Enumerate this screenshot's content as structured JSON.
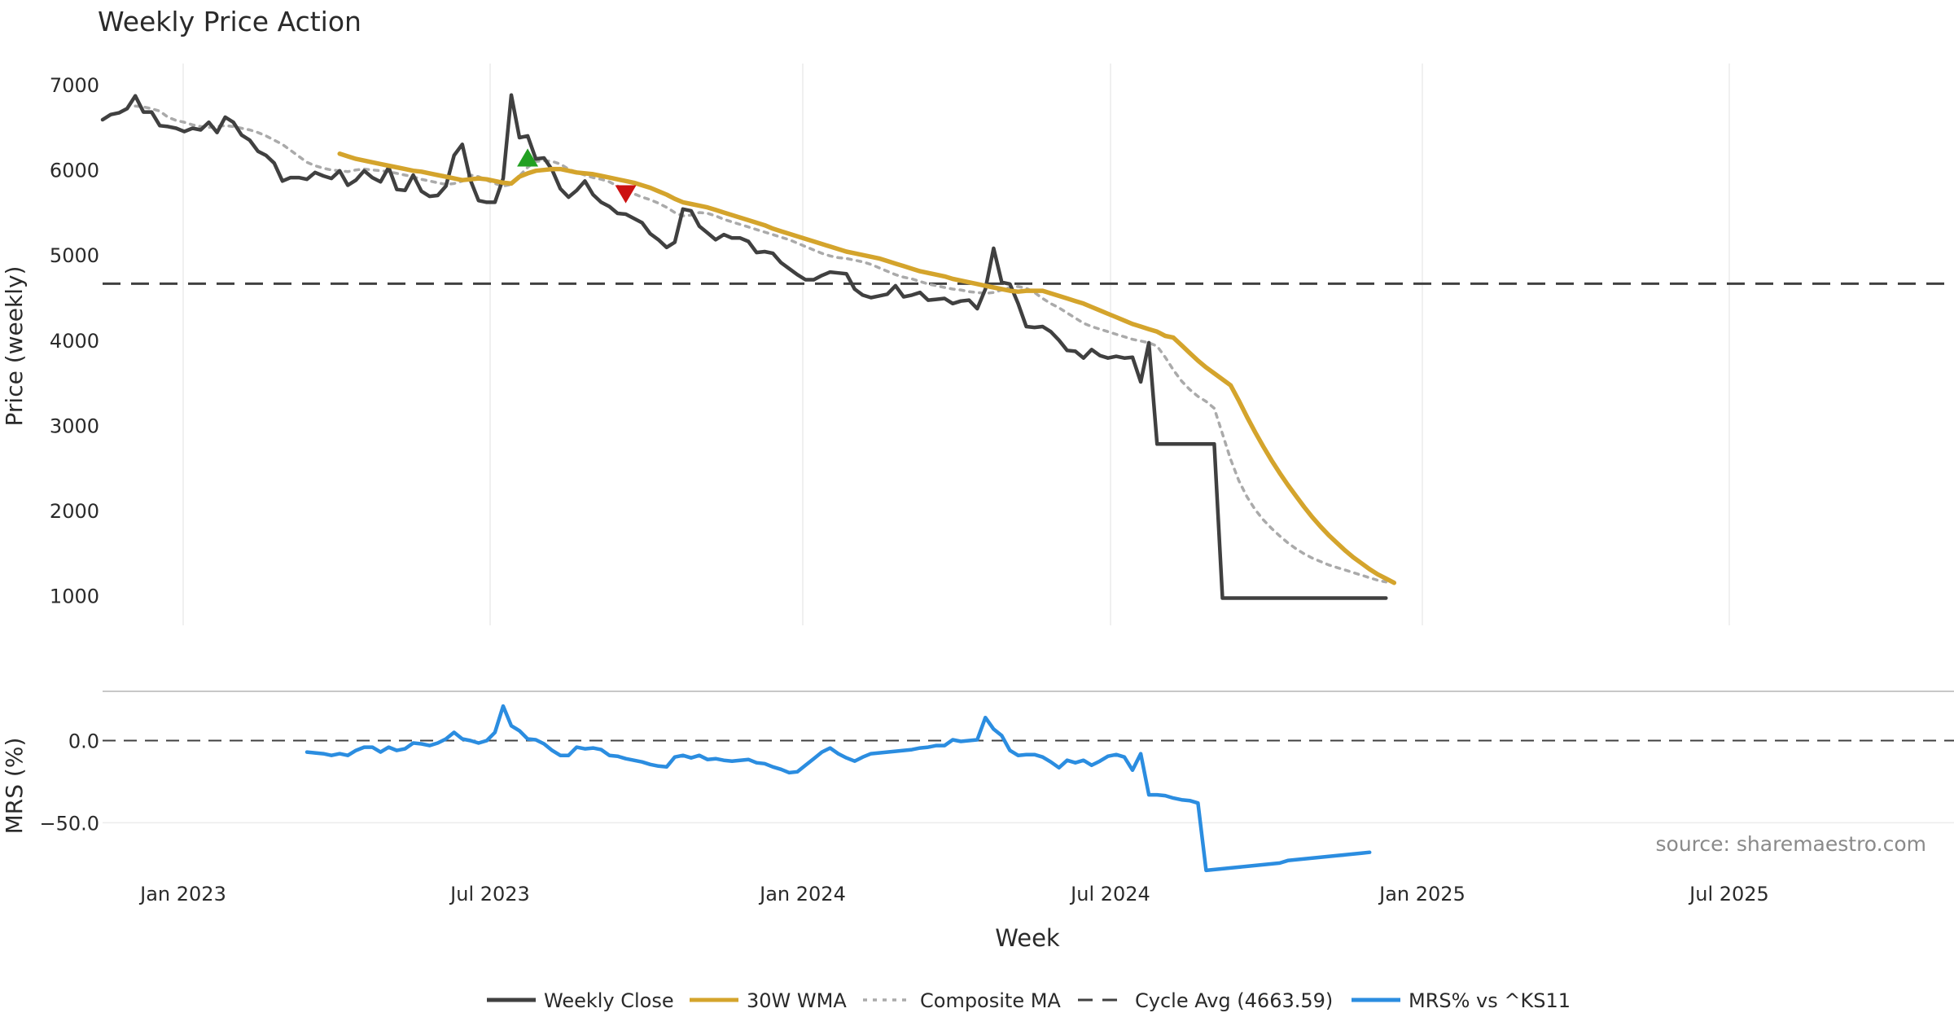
{
  "chart_data": {
    "type": "line",
    "title": "Weekly Price Action",
    "source_note": "source: sharemaestro.com",
    "xlabel": "Week",
    "x_ticks": [
      "Jan 2023",
      "Jul 2023",
      "Jan 2024",
      "Jul 2024",
      "Jan 2025",
      "Jul 2025"
    ],
    "price_panel": {
      "ylabel": "Price (weekly)",
      "ylim": [
        650,
        7250
      ],
      "yticks": [
        1000,
        2000,
        3000,
        4000,
        5000,
        6000,
        7000
      ],
      "y_tick_labels": [
        "1000",
        "2000",
        "3000",
        "4000",
        "5000",
        "6000",
        "7000"
      ],
      "cycle_avg": 4663.59,
      "series": [
        {
          "name": "Weekly Close",
          "color": "#404040",
          "start_week": 0,
          "values": [
            6590,
            6650,
            6670,
            6720,
            6870,
            6680,
            6680,
            6520,
            6510,
            6490,
            6450,
            6490,
            6470,
            6560,
            6440,
            6620,
            6560,
            6410,
            6350,
            6220,
            6170,
            6080,
            5870,
            5910,
            5910,
            5890,
            5970,
            5930,
            5900,
            5990,
            5820,
            5880,
            5990,
            5910,
            5860,
            6030,
            5770,
            5760,
            5940,
            5750,
            5690,
            5700,
            5810,
            6170,
            6300,
            5880,
            5640,
            5620,
            5620,
            5900,
            6880,
            6380,
            6400,
            6130,
            6140,
            6000,
            5780,
            5680,
            5760,
            5870,
            5710,
            5620,
            5570,
            5490,
            5480,
            5430,
            5380,
            5250,
            5180,
            5090,
            5150,
            5540,
            5520,
            5340,
            5260,
            5180,
            5240,
            5200,
            5200,
            5160,
            5030,
            5040,
            5020,
            4910,
            4840,
            4770,
            4710,
            4710,
            4760,
            4800,
            4790,
            4780,
            4600,
            4530,
            4500,
            4520,
            4540,
            4640,
            4510,
            4530,
            4560,
            4470,
            4480,
            4490,
            4430,
            4460,
            4470,
            4370,
            4600,
            5080,
            4680,
            4660,
            4430,
            4160,
            4150,
            4160,
            4100,
            4000,
            3880,
            3870,
            3790,
            3890,
            3820,
            3790,
            3810,
            3790,
            3800,
            3510,
            3970,
            2780,
            2780,
            2780,
            2780,
            2780,
            2780,
            2780,
            2780,
            970,
            970,
            970,
            970,
            970,
            970,
            970,
            970,
            970,
            970,
            970,
            970,
            970,
            970,
            970,
            970,
            970,
            970,
            970,
            970,
            970
          ]
        },
        {
          "name": "30W WMA",
          "color": "#d4a42c",
          "start_week": 29,
          "values": [
            6190,
            6160,
            6130,
            6110,
            6090,
            6070,
            6050,
            6030,
            6010,
            5990,
            5980,
            5960,
            5940,
            5920,
            5900,
            5880,
            5890,
            5900,
            5890,
            5870,
            5850,
            5840,
            5920,
            5960,
            5990,
            6000,
            6010,
            6010,
            5990,
            5970,
            5960,
            5950,
            5930,
            5910,
            5890,
            5870,
            5850,
            5820,
            5790,
            5750,
            5710,
            5660,
            5620,
            5600,
            5580,
            5560,
            5530,
            5500,
            5470,
            5440,
            5410,
            5380,
            5350,
            5310,
            5280,
            5250,
            5220,
            5190,
            5160,
            5130,
            5100,
            5070,
            5040,
            5020,
            5000,
            4980,
            4960,
            4930,
            4900,
            4870,
            4840,
            4810,
            4790,
            4770,
            4750,
            4720,
            4700,
            4680,
            4660,
            4640,
            4620,
            4600,
            4580,
            4570,
            4580,
            4580,
            4580,
            4550,
            4520,
            4490,
            4460,
            4430,
            4390,
            4350,
            4310,
            4270,
            4230,
            4190,
            4160,
            4130,
            4100,
            4050,
            4030,
            3940,
            3850,
            3760,
            3680,
            3610,
            3540,
            3470,
            3290,
            3100,
            2920,
            2750,
            2590,
            2440,
            2300,
            2170,
            2040,
            1920,
            1810,
            1710,
            1620,
            1530,
            1450,
            1380,
            1310,
            1250,
            1200,
            1150
          ]
        },
        {
          "name": "Composite MA",
          "color": "#aaaaaa",
          "start_week": 4,
          "values": [
            6750,
            6740,
            6720,
            6690,
            6620,
            6580,
            6560,
            6530,
            6510,
            6500,
            6510,
            6520,
            6510,
            6490,
            6470,
            6440,
            6400,
            6350,
            6300,
            6230,
            6160,
            6090,
            6050,
            6020,
            6000,
            5990,
            5980,
            6000,
            6010,
            6000,
            5990,
            5980,
            5960,
            5940,
            5920,
            5890,
            5870,
            5850,
            5830,
            5840,
            5870,
            5940,
            5920,
            5880,
            5840,
            5810,
            5830,
            5930,
            6030,
            6100,
            6110,
            6100,
            6070,
            6010,
            5970,
            5940,
            5910,
            5890,
            5860,
            5810,
            5770,
            5720,
            5680,
            5650,
            5610,
            5560,
            5500,
            5460,
            5470,
            5500,
            5490,
            5460,
            5420,
            5390,
            5360,
            5330,
            5300,
            5270,
            5240,
            5210,
            5180,
            5140,
            5100,
            5060,
            5020,
            4990,
            4970,
            4960,
            4940,
            4920,
            4890,
            4850,
            4810,
            4770,
            4740,
            4720,
            4690,
            4660,
            4640,
            4620,
            4600,
            4590,
            4570,
            4560,
            4550,
            4560,
            4590,
            4620,
            4630,
            4610,
            4560,
            4490,
            4430,
            4380,
            4320,
            4260,
            4200,
            4160,
            4130,
            4100,
            4070,
            4040,
            4010,
            3990,
            3970,
            3930,
            3800,
            3650,
            3520,
            3420,
            3340,
            3280,
            3200,
            2900,
            2600,
            2350,
            2160,
            2010,
            1890,
            1790,
            1700,
            1620,
            1550,
            1490,
            1440,
            1400,
            1360,
            1330,
            1300,
            1270,
            1240,
            1210,
            1180,
            1160
          ]
        }
      ],
      "markers": [
        {
          "type": "buy",
          "shape": "triangle-up",
          "color": "#22a022",
          "week": 52,
          "value": 6140
        },
        {
          "type": "sell",
          "shape": "triangle-down",
          "color": "#cc1111",
          "week": 64,
          "value": 5720
        }
      ]
    },
    "mrs_panel": {
      "ylabel": "MRS (%)",
      "ylim": [
        -82,
        27
      ],
      "yticks": [
        0,
        -50
      ],
      "y_tick_labels": [
        "0.0",
        "−50.0"
      ],
      "zero_line": 0,
      "series": [
        {
          "name": "MRS% vs ^KS11",
          "color": "#2b8de0",
          "start_week": 25,
          "values": [
            -7,
            -7.5,
            -8,
            -9,
            -8,
            -9,
            -6,
            -4,
            -4,
            -7,
            -4,
            -6,
            -5,
            -1.5,
            -2,
            -3,
            -1.5,
            1,
            5,
            1,
            0,
            -1.5,
            0,
            5,
            21,
            9,
            6,
            1,
            0.5,
            -2,
            -6,
            -9,
            -9,
            -4,
            -5,
            -4.5,
            -5.5,
            -9,
            -9.5,
            -11,
            -12,
            -13,
            -14.5,
            -15.5,
            -16,
            -10,
            -9,
            -10.5,
            -9,
            -11.5,
            -11,
            -12,
            -12.5,
            -12,
            -11.5,
            -13.5,
            -14,
            -16,
            -17.5,
            -19.5,
            -19,
            -15,
            -11,
            -7,
            -4.5,
            -8,
            -10.5,
            -12.5,
            -10,
            -8,
            -7.5,
            -7,
            -6.5,
            -6,
            -5.5,
            -4.5,
            -4,
            -3,
            -3,
            0.5,
            -0.5,
            0,
            0.5,
            14,
            7,
            3,
            -6,
            -9,
            -8.5,
            -8.5,
            -10,
            -13,
            -16.5,
            -12,
            -13.5,
            -12,
            -15,
            -12.5,
            -9.5,
            -8.5,
            -10,
            -18,
            -8,
            -33,
            -33,
            -33.5,
            -35,
            -36,
            -36.5,
            -38,
            -79,
            -78.5,
            -78,
            -77.5,
            -77,
            -76.5,
            -76,
            -75.5,
            -75,
            -74.5,
            -73,
            -72.5,
            -72,
            -71.5,
            -71,
            -70.5,
            -70,
            -69.5,
            -69,
            -68.5,
            -68
          ]
        }
      ]
    },
    "legend": {
      "position": "bottom-center",
      "entries": [
        {
          "label": "Weekly Close",
          "style": "solid",
          "color": "#404040"
        },
        {
          "label": "30W WMA",
          "style": "solid",
          "color": "#d4a42c"
        },
        {
          "label": "Composite MA",
          "style": "dotted",
          "color": "#aaaaaa"
        },
        {
          "label": "Cycle Avg (4663.59)",
          "style": "dashed",
          "color": "#404040"
        },
        {
          "label": "MRS% vs ^KS11",
          "style": "solid",
          "color": "#2b8de0"
        }
      ]
    }
  }
}
